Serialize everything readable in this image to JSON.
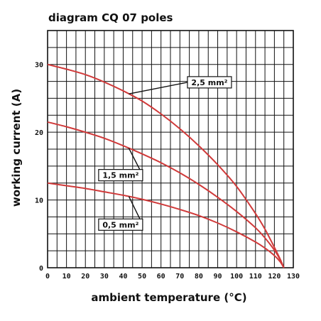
{
  "chart_data": {
    "type": "line",
    "title": "diagram CQ 07 poles",
    "xlabel": "ambient temperature (°C)",
    "ylabel": "working current (A)",
    "xlim": [
      0,
      130
    ],
    "ylim": [
      0,
      35
    ],
    "x_ticks": [
      0,
      10,
      20,
      30,
      40,
      50,
      60,
      70,
      80,
      90,
      100,
      110,
      120,
      130
    ],
    "x_tick_labels": [
      "0",
      "10",
      "20",
      "30",
      "40",
      "50",
      "60",
      "70",
      "80",
      "90",
      "100",
      "110",
      "120",
      "130"
    ],
    "y_ticks": [
      0,
      10,
      20,
      30
    ],
    "y_tick_labels": [
      "0",
      "10",
      "20",
      "30"
    ],
    "grid": true,
    "series": [
      {
        "name": "2,5 mm²",
        "color": "#d03a3a",
        "x": [
          0,
          10,
          20,
          30,
          40,
          50,
          60,
          70,
          80,
          90,
          100,
          110,
          115,
          120,
          123,
          125
        ],
        "y": [
          30,
          29.3,
          28.5,
          27.4,
          26.1,
          24.6,
          22.7,
          20.5,
          18.0,
          15.2,
          12.0,
          8.0,
          5.7,
          3.0,
          1.3,
          0
        ]
      },
      {
        "name": "1,5 mm²",
        "color": "#d03a3a",
        "x": [
          0,
          10,
          20,
          30,
          40,
          50,
          60,
          70,
          80,
          90,
          100,
          110,
          115,
          120,
          123,
          125
        ],
        "y": [
          21.5,
          20.8,
          20.0,
          19.1,
          18.0,
          16.8,
          15.5,
          14.0,
          12.3,
          10.4,
          8.3,
          5.9,
          4.4,
          2.6,
          1.2,
          0
        ]
      },
      {
        "name": "0,5 mm²",
        "color": "#d03a3a",
        "x": [
          0,
          10,
          20,
          30,
          40,
          50,
          60,
          70,
          80,
          90,
          100,
          110,
          115,
          120,
          123,
          125
        ],
        "y": [
          12.5,
          12.1,
          11.7,
          11.2,
          10.7,
          10.1,
          9.4,
          8.6,
          7.7,
          6.6,
          5.3,
          3.8,
          2.9,
          1.8,
          0.9,
          0
        ]
      }
    ],
    "annotations": [
      {
        "text": "2,5 mm²",
        "series": 0,
        "point_x": 43,
        "box_x": 74,
        "box_y": 28.2
      },
      {
        "text": "1,5 mm²",
        "series": 1,
        "point_x": 43,
        "box_x": 27,
        "box_y": 14.5
      },
      {
        "text": "0,5 mm²",
        "series": 2,
        "point_x": 43,
        "box_x": 27,
        "box_y": 7.2
      }
    ]
  }
}
